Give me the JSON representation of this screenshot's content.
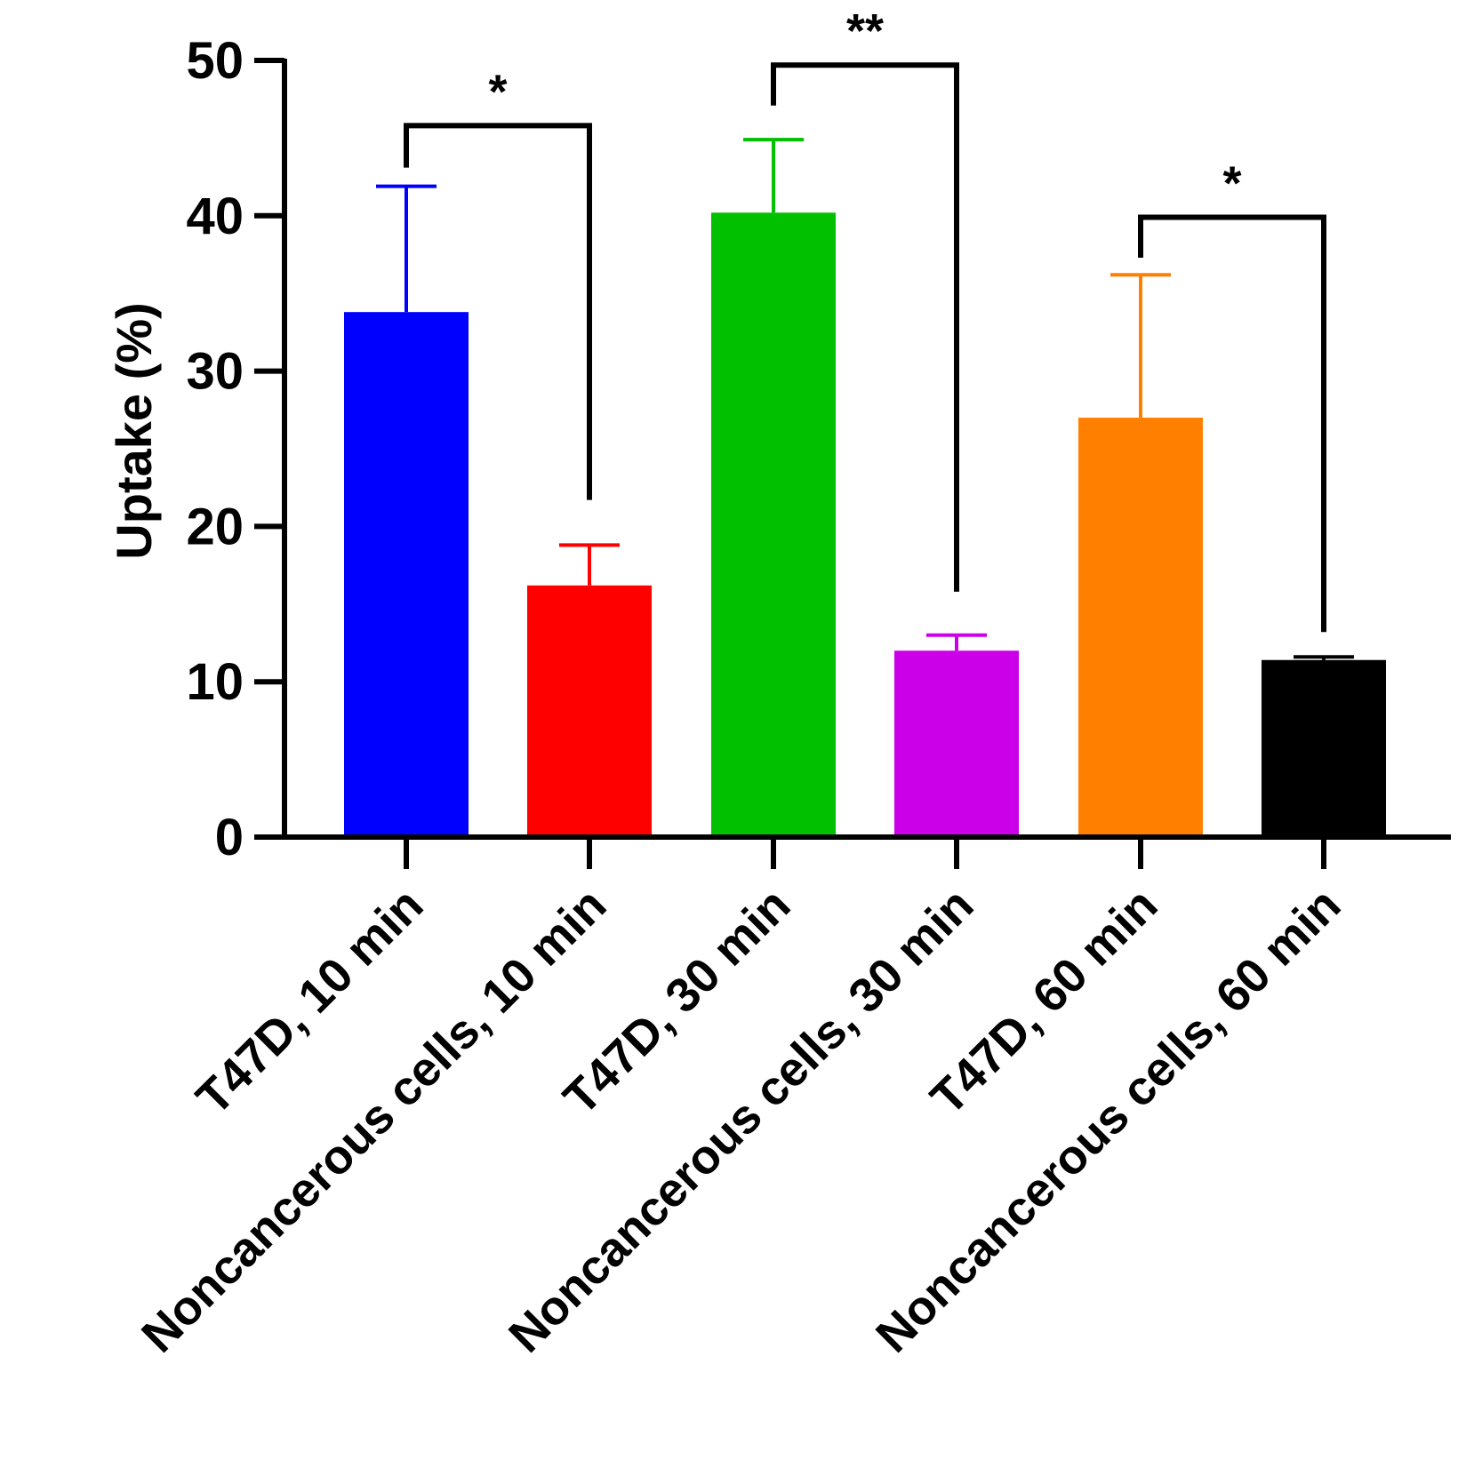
{
  "chart_data": {
    "type": "bar",
    "title": "",
    "xlabel": "",
    "ylabel": "Uptake (%)",
    "ylim": [
      0,
      50
    ],
    "yticks": [
      0,
      10,
      20,
      30,
      40,
      50
    ],
    "categories": [
      "T47D, 10 min",
      "Noncancerous cells, 10 min",
      "T47D, 30 min",
      "Noncancerous cells, 30 min",
      "T47D, 60 min",
      "Noncancerous cells, 60 min"
    ],
    "values": [
      33.8,
      16.2,
      40.2,
      12.0,
      27.0,
      11.4
    ],
    "error_upper": [
      41.9,
      18.8,
      44.9,
      13.0,
      36.2,
      11.6
    ],
    "colors": [
      "#0000ff",
      "#ff0000",
      "#00c000",
      "#cc00e8",
      "#ff8000",
      "#000000"
    ],
    "significance": [
      {
        "between": [
          0,
          1
        ],
        "label": "*",
        "y": 45.8,
        "left_end": 43.1,
        "right_end": 21.7
      },
      {
        "between": [
          2,
          3
        ],
        "label": "**",
        "y": 49.7,
        "left_end": 47.1,
        "right_end": 15.8
      },
      {
        "between": [
          4,
          5
        ],
        "label": "*",
        "y": 39.9,
        "left_end": 37.3,
        "right_end": 13.2
      }
    ]
  }
}
